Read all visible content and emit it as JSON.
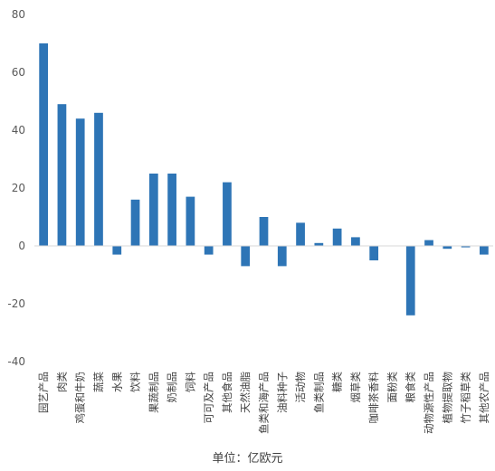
{
  "chart_data": {
    "type": "bar",
    "categories": [
      "园艺产品",
      "肉类",
      "鸡蛋和牛奶",
      "蔬菜",
      "水果",
      "饮料",
      "果蔬制品",
      "奶制品",
      "饲料",
      "可可及产品",
      "其他食品",
      "天然油脂",
      "鱼类和海产品",
      "油料种子",
      "活动物",
      "鱼类制品",
      "糖类",
      "烟草类",
      "咖啡茶香料",
      "面粉类",
      "粮食类",
      "动物源性产品",
      "植物提取物",
      "竹子稻草类",
      "其他农产品"
    ],
    "values": [
      70,
      49,
      44,
      46,
      -3,
      16,
      25,
      25,
      17,
      -3,
      22,
      -7,
      10,
      -7,
      8,
      1,
      6,
      3,
      -5,
      0,
      -24,
      2,
      -1,
      -0.5,
      -3
    ],
    "ylim": [
      -40,
      80
    ],
    "yticks": [
      -40,
      -20,
      0,
      20,
      40,
      60,
      80
    ],
    "ytick_labels": [
      "-40",
      "-20",
      "0",
      "20",
      "40",
      "60",
      "80"
    ],
    "grid": false,
    "bar_color": "#2E75B6",
    "axis_color": "#D9D9D9",
    "note": "单位：亿欧元"
  }
}
